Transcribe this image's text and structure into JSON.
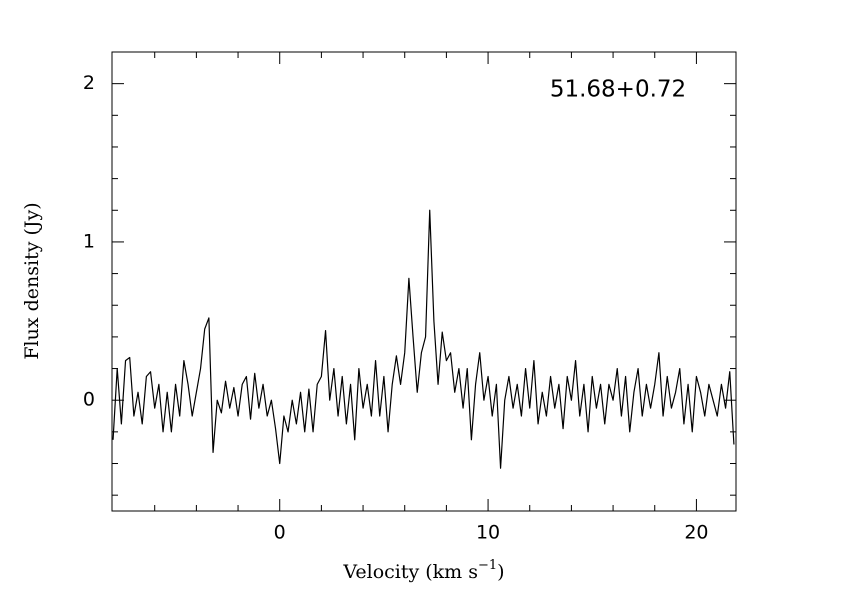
{
  "chart_data": {
    "type": "line",
    "annotation": "51.68+0.72",
    "ylabel": "Flux density (Jy)",
    "xlabel": [
      "Velocity (km s",
      "−1",
      ")"
    ],
    "color": "#000000",
    "xlim": [
      -8.05,
      21.9
    ],
    "ylim": [
      -0.7,
      2.2
    ],
    "xticks": [
      0,
      10,
      20
    ],
    "yticks": [
      0,
      1,
      2
    ],
    "xminor": [
      -6,
      -4,
      -2,
      2,
      4,
      6,
      8,
      12,
      14,
      16,
      18
    ],
    "yminor": [
      -0.6,
      -0.4,
      -0.2,
      0.2,
      0.4,
      0.6,
      0.8,
      1.2,
      1.4,
      1.6,
      1.8
    ],
    "x": [
      -8,
      -7.8,
      -7.6,
      -7.4,
      -7.2,
      -7,
      -6.8,
      -6.6,
      -6.4,
      -6.2,
      -6,
      -5.8,
      -5.6,
      -5.4,
      -5.2,
      -5,
      -4.8,
      -4.6,
      -4.4,
      -4.2,
      -4,
      -3.8,
      -3.6,
      -3.4,
      -3.2,
      -3,
      -2.8,
      -2.6,
      -2.4,
      -2.2,
      -2,
      -1.8,
      -1.6,
      -1.4,
      -1.2,
      -1,
      -0.8,
      -0.6,
      -0.4,
      -0.2,
      0,
      0.2,
      0.4,
      0.6,
      0.8,
      1,
      1.2,
      1.4,
      1.6,
      1.8,
      2,
      2.2,
      2.4,
      2.6,
      2.8,
      3,
      3.2,
      3.4,
      3.6,
      3.8,
      4,
      4.2,
      4.4,
      4.6,
      4.8,
      5,
      5.2,
      5.4,
      5.6,
      5.8,
      6,
      6.2,
      6.4,
      6.6,
      6.8,
      7,
      7.2,
      7.4,
      7.6,
      7.8,
      8,
      8.2,
      8.4,
      8.6,
      8.8,
      9,
      9.2,
      9.4,
      9.6,
      9.8,
      10,
      10.2,
      10.4,
      10.6,
      10.8,
      11,
      11.2,
      11.4,
      11.6,
      11.8,
      12,
      12.2,
      12.4,
      12.6,
      12.8,
      13,
      13.2,
      13.4,
      13.6,
      13.8,
      14,
      14.2,
      14.4,
      14.6,
      14.8,
      15,
      15.2,
      15.4,
      15.6,
      15.8,
      16,
      16.2,
      16.4,
      16.6,
      16.8,
      17,
      17.2,
      17.4,
      17.6,
      17.8,
      18,
      18.2,
      18.4,
      18.6,
      18.8,
      19,
      19.2,
      19.4,
      19.6,
      19.8,
      20,
      20.2,
      20.4,
      20.6,
      20.8,
      21,
      21.2,
      21.4,
      21.6,
      21.8
    ],
    "values": [
      -0.25,
      0.2,
      -0.15,
      0.25,
      0.27,
      -0.1,
      0.05,
      -0.15,
      0.15,
      0.18,
      -0.05,
      0.1,
      -0.2,
      0.05,
      -0.2,
      0.1,
      -0.1,
      0.25,
      0.1,
      -0.1,
      0.05,
      0.2,
      0.45,
      0.52,
      -0.33,
      0,
      -0.08,
      0.12,
      -0.05,
      0.08,
      -0.1,
      0.1,
      0.15,
      -0.12,
      0.17,
      -0.05,
      0.1,
      -0.1,
      0,
      -0.18,
      -0.4,
      -0.1,
      -0.2,
      0,
      -0.15,
      0.05,
      -0.2,
      0.07,
      -0.2,
      0.1,
      0.15,
      0.44,
      0,
      0.2,
      -0.1,
      0.15,
      -0.15,
      0.1,
      -0.25,
      0.2,
      -0.05,
      0.1,
      -0.1,
      0.25,
      -0.1,
      0.15,
      -0.2,
      0.1,
      0.28,
      0.1,
      0.3,
      0.77,
      0.4,
      0.05,
      0.3,
      0.4,
      1.2,
      0.5,
      0.1,
      0.43,
      0.25,
      0.3,
      0.05,
      0.2,
      -0.05,
      0.2,
      -0.25,
      0.1,
      0.3,
      0,
      0.15,
      -0.1,
      0.1,
      -0.43,
      0,
      0.15,
      -0.05,
      0.1,
      -0.1,
      0.2,
      -0.05,
      0.25,
      -0.15,
      0.05,
      -0.1,
      0.15,
      -0.05,
      0.1,
      -0.18,
      0.15,
      0,
      0.25,
      -0.1,
      0.1,
      -0.2,
      0.15,
      -0.05,
      0.1,
      -0.15,
      0.1,
      0,
      0.2,
      -0.1,
      0.15,
      -0.2,
      0.05,
      0.2,
      -0.1,
      0.1,
      -0.05,
      0.1,
      0.3,
      -0.1,
      0.15,
      -0.05,
      0.05,
      0.2,
      -0.15,
      0.1,
      -0.2,
      0.15,
      0.05,
      -0.1,
      0.1,
      0,
      -0.1,
      0.1,
      -0.05,
      0.18,
      -0.28
    ]
  }
}
